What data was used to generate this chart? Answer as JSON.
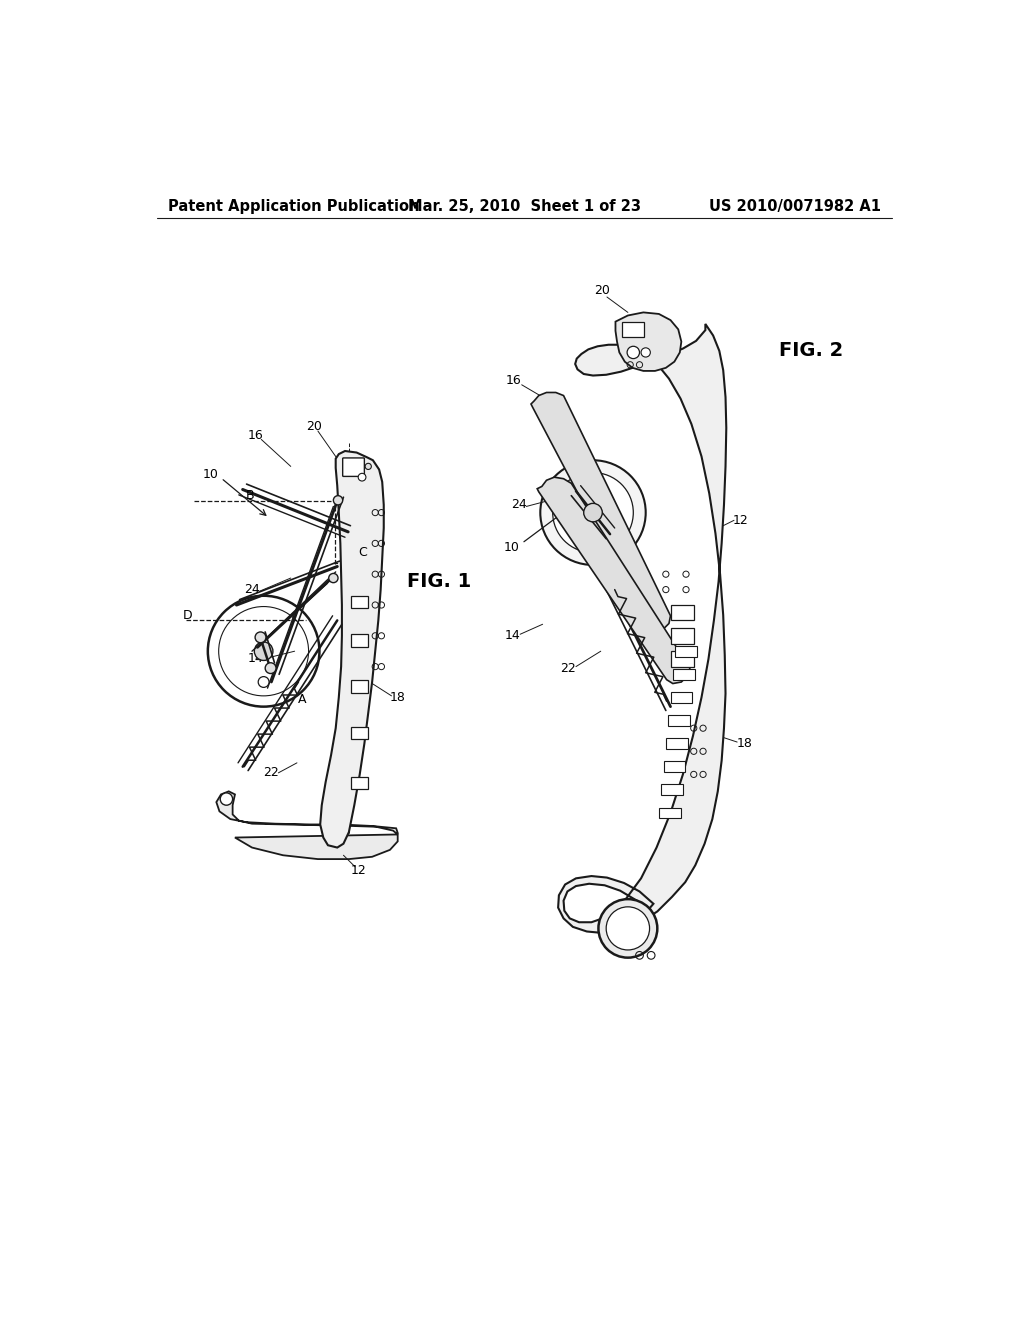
{
  "background_color": "#ffffff",
  "header_left": "Patent Application Publication",
  "header_mid": "Mar. 25, 2010  Sheet 1 of 23",
  "header_right": "US 2010/0071982 A1",
  "header_fontsize": 10.5,
  "fig1_label": "FIG. 1",
  "fig2_label": "FIG. 2",
  "fig_label_fontsize": 14,
  "line_color": "#1a1a1a",
  "label_fontsize": 9
}
